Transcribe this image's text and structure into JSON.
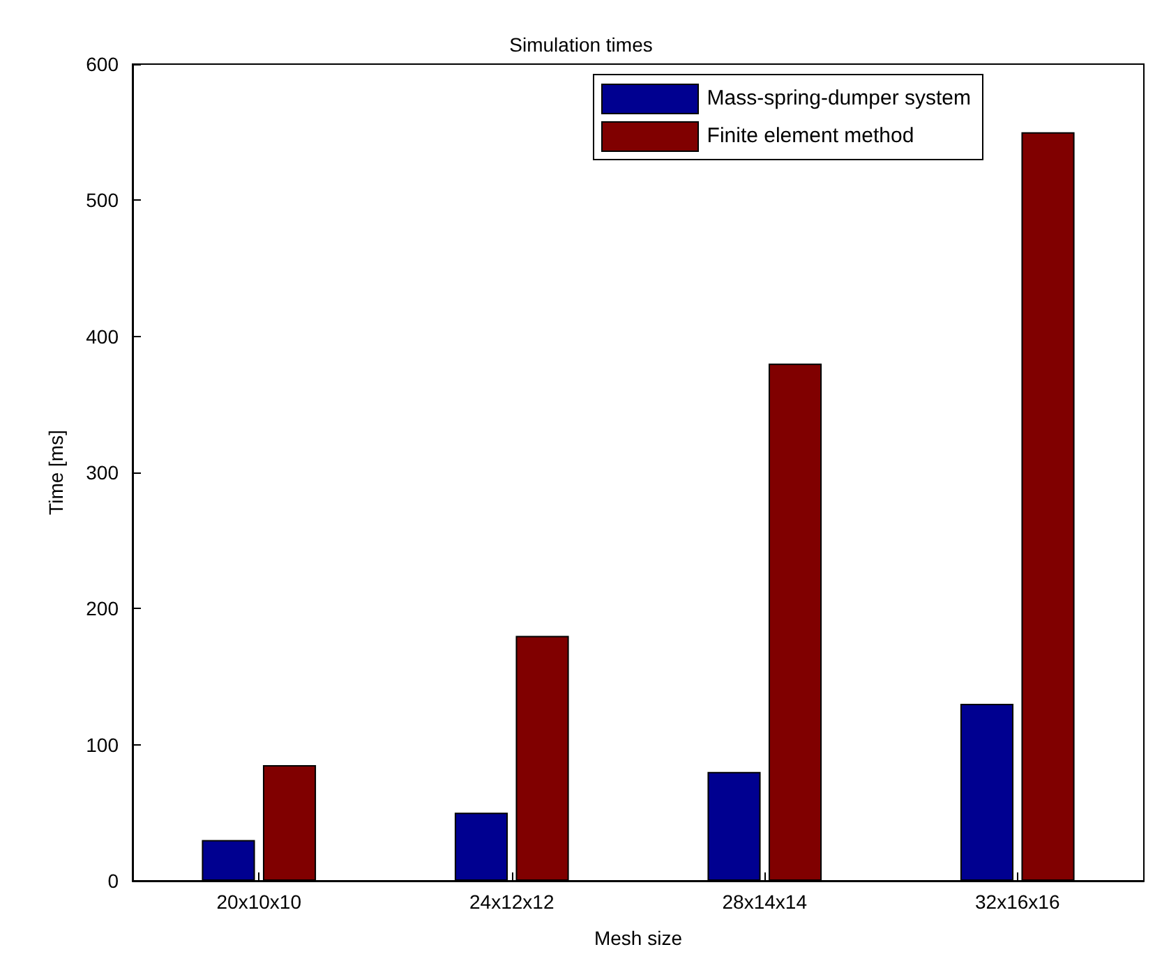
{
  "chart_data": {
    "type": "bar",
    "title": "Simulation times",
    "xlabel": "Mesh size",
    "ylabel": "Time [ms]",
    "categories": [
      "20x10x10",
      "24x12x12",
      "28x14x14",
      "32x16x16"
    ],
    "series": [
      {
        "name": "Mass-spring-dumper system",
        "color": "#000090",
        "values": [
          30,
          50,
          80,
          130
        ]
      },
      {
        "name": "Finite element method",
        "color": "#800000",
        "values": [
          85,
          180,
          380,
          550
        ]
      }
    ],
    "ylim": [
      0,
      600
    ],
    "yticks": [
      0,
      100,
      200,
      300,
      400,
      500,
      600
    ],
    "grid": false,
    "legend": "top right"
  }
}
